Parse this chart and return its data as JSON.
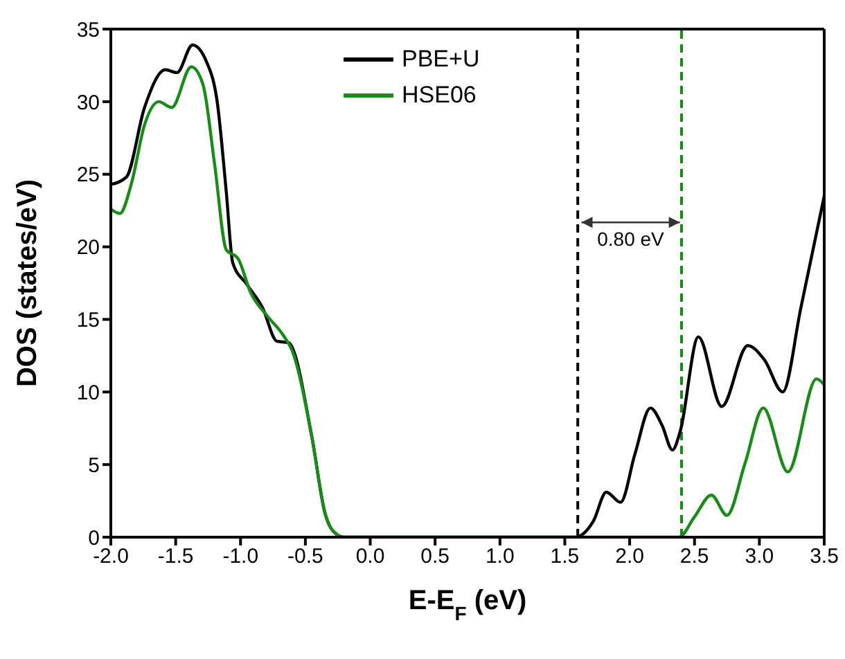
{
  "chart_data": {
    "type": "line",
    "xlabel": "E-E$_{F}$ (eV)",
    "ylabel": "DOS (states/eV)",
    "xlim": [
      -2,
      3.5
    ],
    "ylim": [
      0,
      35
    ],
    "xticks": [
      {
        "value": -2,
        "label": "-2.0"
      },
      -1.5,
      {
        "value": -1,
        "label": "-1.0"
      },
      -0.5,
      {
        "value": 0,
        "label": "0.0"
      },
      0.5,
      {
        "value": 1,
        "label": "1.0"
      },
      1.5,
      {
        "value": 2,
        "label": "2.0"
      },
      2.5,
      {
        "value": 3,
        "label": "3.0"
      },
      3.5
    ],
    "yticks": [
      0,
      5,
      10,
      15,
      20,
      25,
      30,
      35
    ],
    "legend": "top",
    "line_style": "solid",
    "marker": "none",
    "series": [
      {
        "name": "PBE+U",
        "color": "#000000",
        "x": [
          -2,
          -1.88,
          -1.74,
          -1.58,
          -1.49,
          -1.37,
          -1.26,
          -1.18,
          -1.11,
          -1.06,
          -0.95,
          -0.83,
          -0.72,
          -0.63,
          -0.45,
          -0.35,
          -0.26,
          -0.2,
          1.58,
          1.72,
          1.82,
          1.93,
          2.04,
          2.16,
          2.25,
          2.33,
          2.39,
          2.53,
          2.71,
          2.91,
          3.04,
          3.18,
          3.32,
          3.5
        ],
        "values": [
          24.3,
          24.8,
          29.6,
          32.2,
          32,
          33.9,
          32.7,
          30,
          23.8,
          18.9,
          17.4,
          15.8,
          13.5,
          13.4,
          6.9,
          1.7,
          0.2,
          0,
          0,
          1.1,
          3.1,
          2.4,
          5.7,
          8.9,
          7.7,
          6,
          7.3,
          13.8,
          9,
          13.2,
          12.2,
          10,
          15.8,
          23.5
        ]
      },
      {
        "name": "HSE06",
        "color": "#1a8a1a",
        "x": [
          -2,
          -1.93,
          -1.84,
          -1.74,
          -1.63,
          -1.53,
          -1.38,
          -1.29,
          -1.2,
          -1.11,
          -1.02,
          -0.92,
          -0.79,
          -0.67,
          -0.6,
          -0.45,
          -0.35,
          -0.26,
          -0.2,
          2.38,
          2.5,
          2.63,
          2.75,
          2.89,
          3.03,
          3.22,
          3.44,
          3.5
        ],
        "values": [
          22.6,
          22.3,
          24.4,
          28.4,
          30,
          29.6,
          32.4,
          31.2,
          25.7,
          19.8,
          19.2,
          16.8,
          15.2,
          13.9,
          12.8,
          6.9,
          1.7,
          0.2,
          0,
          0,
          1.4,
          2.9,
          1.5,
          5.1,
          8.9,
          4.5,
          10.9,
          10.5
        ]
      }
    ],
    "ref_lines": [
      {
        "axis": "x",
        "value": 1.6,
        "color": "#000000",
        "line_style": "dashed"
      },
      {
        "axis": "x",
        "value": 2.4,
        "color": "#1a8a1a",
        "line_style": "dashed"
      }
    ],
    "annotations": [
      "0.80 eV"
    ]
  }
}
